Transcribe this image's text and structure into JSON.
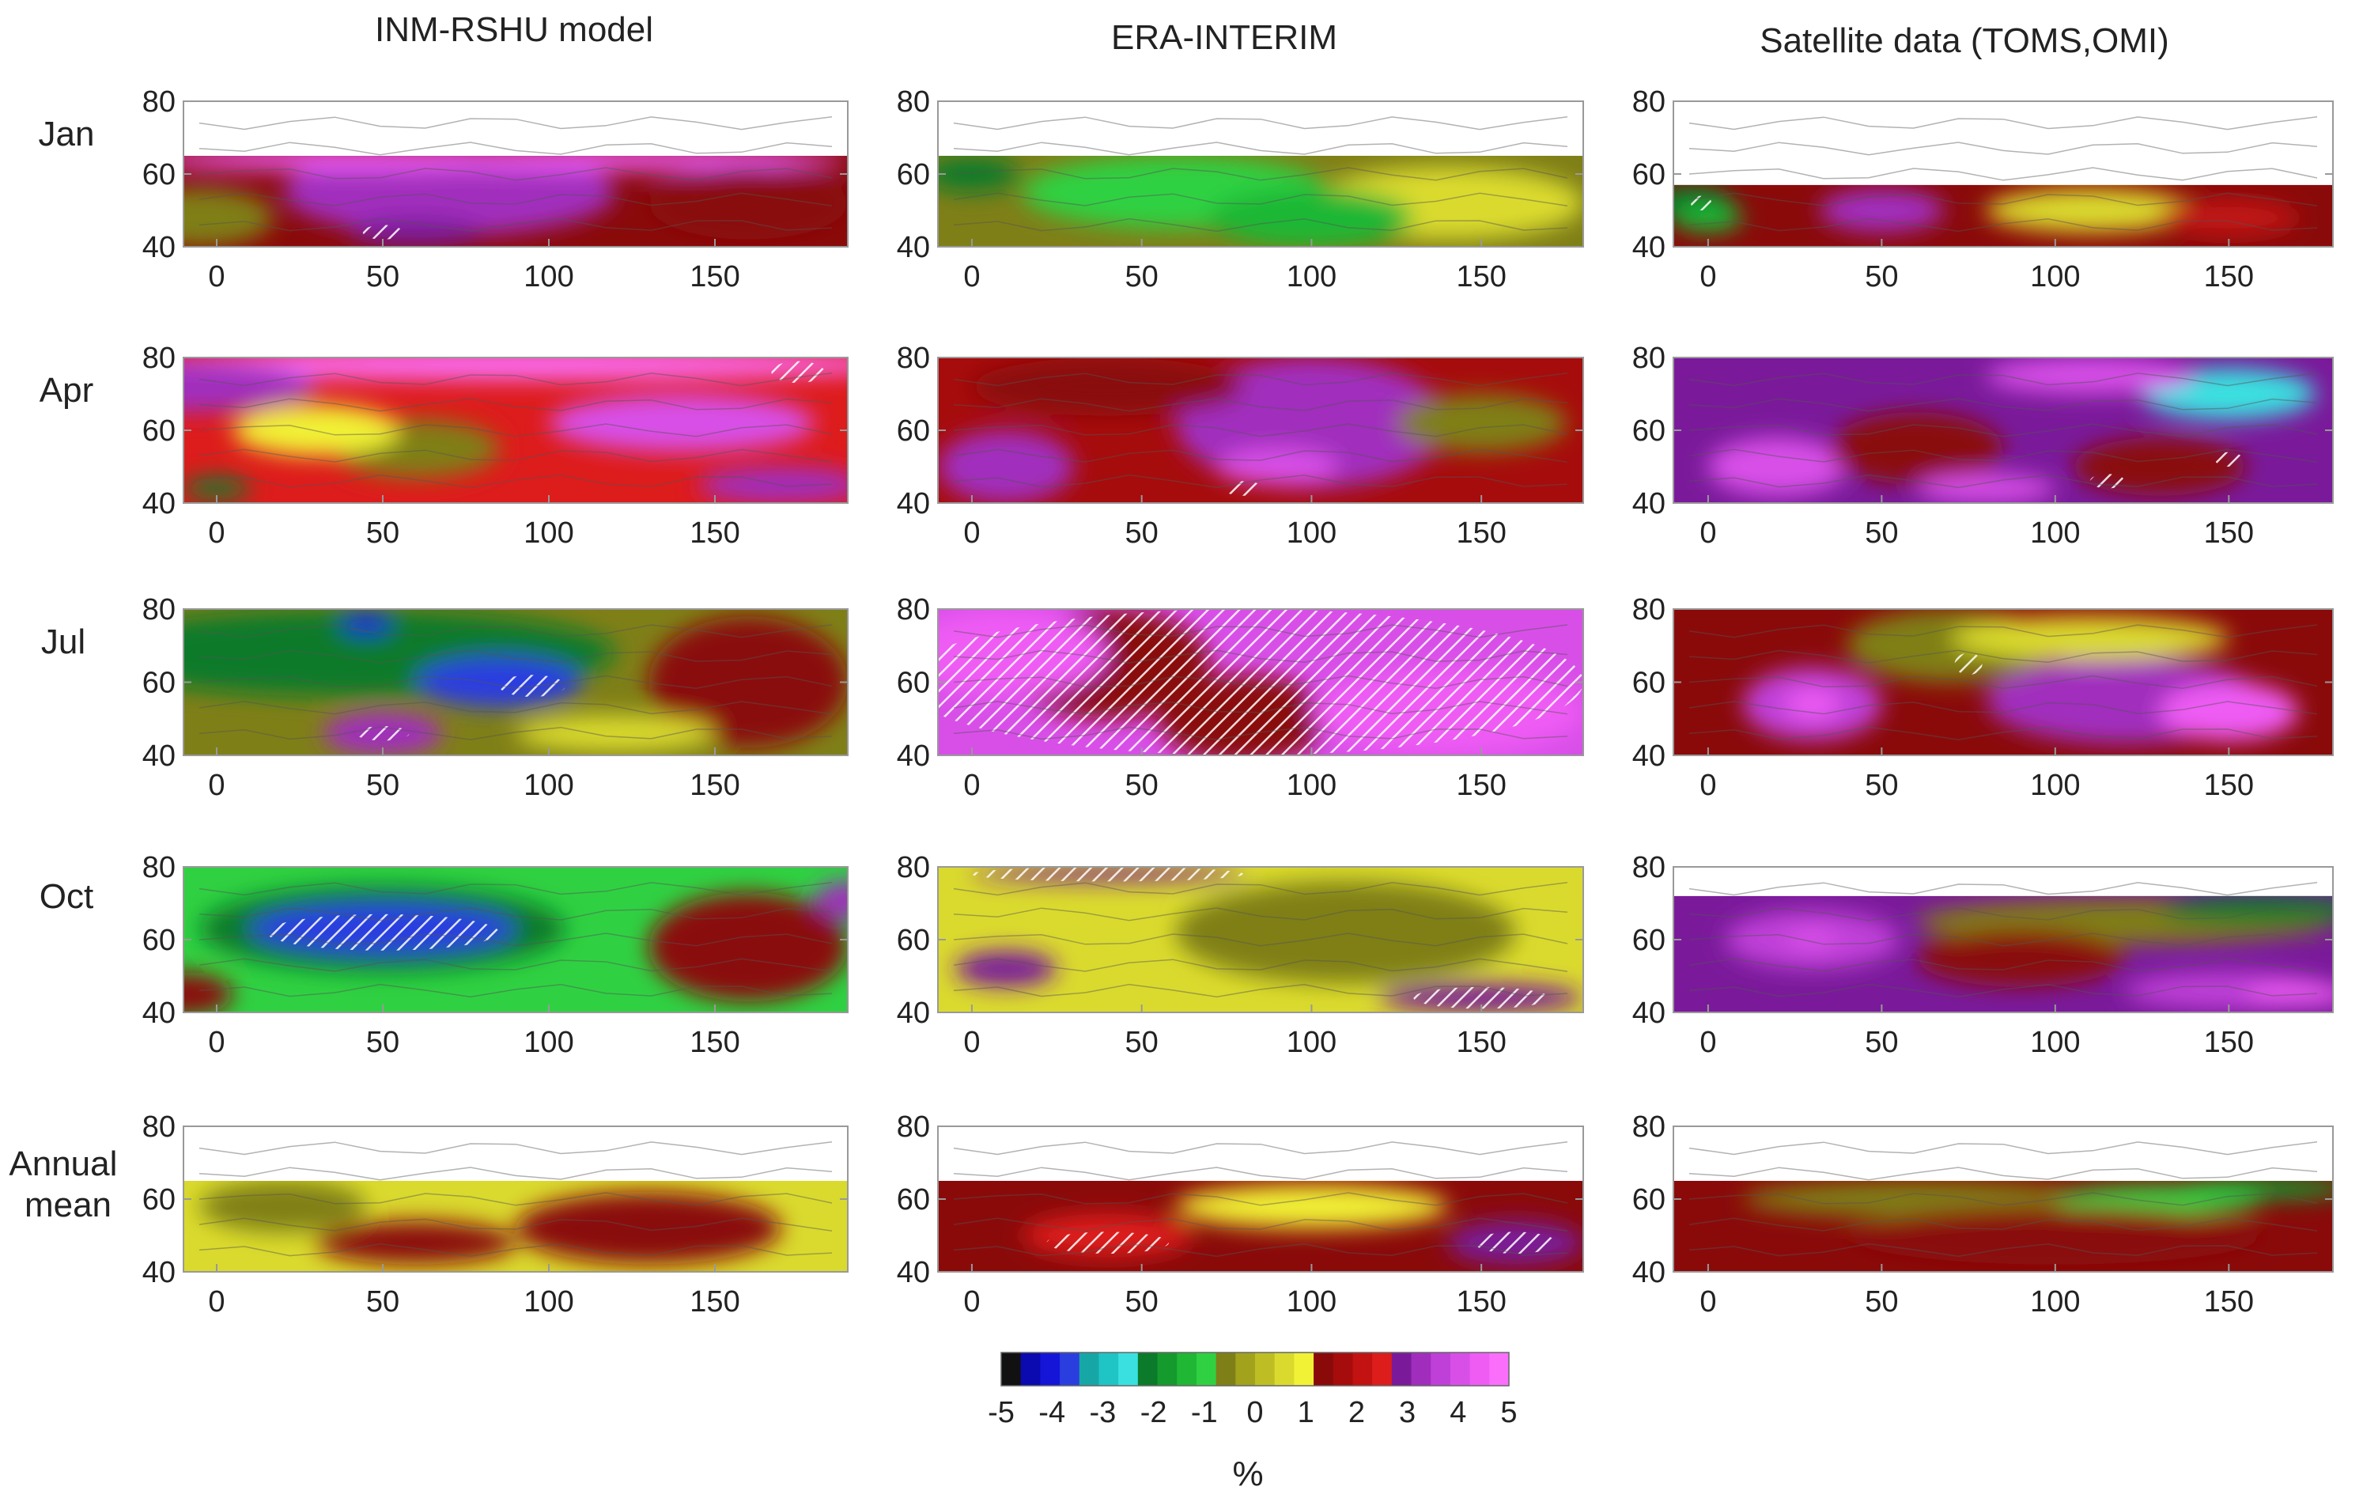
{
  "columns": [
    "INM-RSHU model",
    "ERA-INTERIM",
    "Satellite data (TOMS,OMI)"
  ],
  "rows": [
    "Jan",
    "Apr",
    "Jul",
    "Oct",
    "Annual\nmean"
  ],
  "x_ticks": [
    "0",
    "50",
    "100",
    "150"
  ],
  "y_ticks": [
    "40",
    "60",
    "80"
  ],
  "colorbar": {
    "ticks": [
      "-5",
      "-4",
      "-3",
      "-2",
      "-1",
      "0",
      "1",
      "2",
      "3",
      "4",
      "5"
    ],
    "unit": "%",
    "colors": [
      "#111111",
      "#0a0ab0",
      "#1515d8",
      "#2a3ee0",
      "#17a6a6",
      "#1fc4c4",
      "#3ae0e0",
      "#0b7a2a",
      "#159a2e",
      "#1fb734",
      "#2fd142",
      "#7f7f18",
      "#a2a21c",
      "#bebe24",
      "#dada2e",
      "#f1f136",
      "#8a0a0a",
      "#a60c0c",
      "#c21212",
      "#dd1c1c",
      "#7a1a9a",
      "#a12dbd",
      "#bf40d8",
      "#d84fe8",
      "#ee5cf4",
      "#fb6efb"
    ]
  },
  "chart_data": [
    {
      "type": "heatmap",
      "title": "INM-RSHU model",
      "row": "Jan",
      "xlim": [
        -10,
        190
      ],
      "ylim": [
        40,
        80
      ],
      "lat_extent": [
        40,
        65
      ],
      "value_range_pct": [
        -1,
        5
      ]
    },
    {
      "type": "heatmap",
      "title": "ERA-INTERIM",
      "row": "Jan",
      "xlim": [
        -10,
        180
      ],
      "ylim": [
        40,
        80
      ],
      "lat_extent": [
        40,
        65
      ],
      "value_range_pct": [
        -3,
        1
      ]
    },
    {
      "type": "heatmap",
      "title": "Satellite data (TOMS,OMI)",
      "row": "Jan",
      "xlim": [
        -10,
        180
      ],
      "ylim": [
        40,
        80
      ],
      "lat_extent": [
        40,
        57
      ],
      "value_range_pct": [
        -3,
        4
      ]
    },
    {
      "type": "heatmap",
      "title": "INM-RSHU model",
      "row": "Apr",
      "xlim": [
        -10,
        190
      ],
      "ylim": [
        40,
        80
      ],
      "lat_extent": [
        40,
        80
      ],
      "value_range_pct": [
        -2,
        5
      ]
    },
    {
      "type": "heatmap",
      "title": "ERA-INTERIM",
      "row": "Apr",
      "xlim": [
        -10,
        180
      ],
      "ylim": [
        40,
        80
      ],
      "lat_extent": [
        40,
        80
      ],
      "value_range_pct": [
        -1,
        4
      ]
    },
    {
      "type": "heatmap",
      "title": "Satellite data (TOMS,OMI)",
      "row": "Apr",
      "xlim": [
        -10,
        180
      ],
      "ylim": [
        40,
        80
      ],
      "lat_extent": [
        40,
        80
      ],
      "value_range_pct": [
        -3,
        5
      ]
    },
    {
      "type": "heatmap",
      "title": "INM-RSHU model",
      "row": "Jul",
      "xlim": [
        -10,
        190
      ],
      "ylim": [
        40,
        80
      ],
      "lat_extent": [
        40,
        80
      ],
      "value_range_pct": [
        -4,
        4
      ]
    },
    {
      "type": "heatmap",
      "title": "ERA-INTERIM",
      "row": "Jul",
      "xlim": [
        -10,
        180
      ],
      "ylim": [
        40,
        80
      ],
      "lat_extent": [
        40,
        80
      ],
      "value_range_pct": [
        1,
        5
      ]
    },
    {
      "type": "heatmap",
      "title": "Satellite data (TOMS,OMI)",
      "row": "Jul",
      "xlim": [
        -10,
        180
      ],
      "ylim": [
        40,
        80
      ],
      "lat_extent": [
        40,
        80
      ],
      "value_range_pct": [
        -3,
        5
      ]
    },
    {
      "type": "heatmap",
      "title": "INM-RSHU model",
      "row": "Oct",
      "xlim": [
        -10,
        190
      ],
      "ylim": [
        40,
        80
      ],
      "lat_extent": [
        40,
        80
      ],
      "value_range_pct": [
        -4,
        3
      ]
    },
    {
      "type": "heatmap",
      "title": "ERA-INTERIM",
      "row": "Oct",
      "xlim": [
        -10,
        180
      ],
      "ylim": [
        40,
        80
      ],
      "lat_extent": [
        40,
        80
      ],
      "value_range_pct": [
        -1,
        3
      ]
    },
    {
      "type": "heatmap",
      "title": "Satellite data (TOMS,OMI)",
      "row": "Oct",
      "xlim": [
        -10,
        180
      ],
      "ylim": [
        40,
        80
      ],
      "lat_extent": [
        40,
        72
      ],
      "value_range_pct": [
        -4,
        4
      ]
    },
    {
      "type": "heatmap",
      "title": "INM-RSHU model",
      "row": "Annual mean",
      "xlim": [
        -10,
        190
      ],
      "ylim": [
        40,
        80
      ],
      "lat_extent": [
        40,
        65
      ],
      "value_range_pct": [
        -1,
        1
      ]
    },
    {
      "type": "heatmap",
      "title": "ERA-INTERIM",
      "row": "Annual mean",
      "xlim": [
        -10,
        180
      ],
      "ylim": [
        40,
        80
      ],
      "lat_extent": [
        40,
        65
      ],
      "value_range_pct": [
        0,
        3
      ]
    },
    {
      "type": "heatmap",
      "title": "Satellite data (TOMS,OMI)",
      "row": "Annual mean",
      "xlim": [
        -10,
        180
      ],
      "ylim": [
        40,
        80
      ],
      "lat_extent": [
        40,
        65
      ],
      "value_range_pct": [
        -3,
        3
      ]
    }
  ]
}
